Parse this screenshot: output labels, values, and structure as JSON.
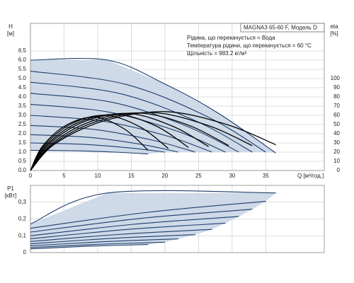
{
  "chart_data": [
    {
      "type": "line",
      "title": "MAGNA3 65-60 F, Модель D",
      "annotations": [
        "Рідина, що перекачується = Вода",
        "Температура рідини, що перекачується = 60 °C",
        "Щільність = 983.2 кг/м³"
      ],
      "x_label": "Q [м³/год.]",
      "y_label": "H",
      "y_unit": "[м]",
      "y2_label": "eta",
      "y2_unit": "[%]",
      "xlim": [
        0,
        43.7
      ],
      "xticks": [
        0,
        5,
        10,
        15,
        20,
        25,
        30,
        35
      ],
      "xtick_labels": true,
      "ylim": [
        0,
        8
      ],
      "yticks": [
        {
          "value": 0,
          "label": "0.0"
        },
        0.5,
        {
          "value": 1,
          "label": "1.0"
        },
        1.5,
        {
          "value": 2,
          "label": "2.0"
        },
        2.5,
        {
          "value": 3,
          "label": "3.0"
        },
        3.5,
        {
          "value": 4,
          "label": "4.0"
        },
        4.5,
        {
          "value": 5,
          "label": "5.0"
        },
        5.5,
        {
          "value": 6,
          "label": "6.0"
        },
        6.5
      ],
      "y2lim": [
        0,
        160
      ],
      "y2ticks": [
        0,
        10,
        20,
        30,
        40,
        50,
        60,
        70,
        80,
        90,
        100
      ],
      "grid": true,
      "fill": "#c9d6e6",
      "series": [
        {
          "color": "#1d3d6b",
          "x": [
            0,
            11.5,
            20,
            28,
            36.5
          ],
          "values": [
            6.0,
            6.0,
            4.7,
            3.1,
            0.95
          ]
        },
        {
          "color": "#1d3d6b",
          "x": [
            0,
            14,
            26.3,
            35
          ],
          "values": [
            5.4,
            4.7,
            2.93,
            1.0
          ]
        },
        {
          "color": "#1d3d6b",
          "x": [
            0,
            13.2,
            24.8,
            33
          ],
          "values": [
            4.8,
            4.19,
            2.66,
            1.0
          ]
        },
        {
          "color": "#1d3d6b",
          "x": [
            0,
            12.4,
            23.3,
            31
          ],
          "values": [
            4.2,
            3.69,
            2.4,
            1.0
          ]
        },
        {
          "color": "#1d3d6b",
          "x": [
            0,
            11.6,
            21.8,
            29
          ],
          "values": [
            3.6,
            3.18,
            2.14,
            1.0
          ]
        },
        {
          "color": "#1d3d6b",
          "x": [
            0,
            10.8,
            20.3,
            27
          ],
          "values": [
            3.0,
            2.68,
            1.88,
            1.0
          ]
        },
        {
          "color": "#1d3d6b",
          "x": [
            0,
            9.8,
            18.4,
            24.5
          ],
          "values": [
            2.45,
            2.22,
            1.63,
            1.0
          ]
        },
        {
          "color": "#1d3d6b",
          "x": [
            0,
            8.8,
            16.5,
            22
          ],
          "values": [
            1.95,
            1.8,
            1.42,
            1.0
          ]
        },
        {
          "color": "#1d3d6b",
          "x": [
            0,
            8,
            15,
            20
          ],
          "values": [
            1.5,
            1.42,
            1.22,
            1.0
          ]
        },
        {
          "color": "#1d3d6b",
          "x": [
            0,
            7,
            13.1,
            17.5
          ],
          "values": [
            1.1,
            1.07,
            0.99,
            0.9
          ]
        },
        {
          "color": "#000000",
          "axis": "y2",
          "x": [
            0,
            1.75,
            5.25,
            9.63,
            14,
            17.5
          ],
          "values": [
            0,
            26,
            49,
            58,
            45,
            22
          ]
        },
        {
          "color": "#000000",
          "axis": "y2",
          "x": [
            0,
            2.05,
            6.15,
            11.28,
            16.4,
            20.5
          ],
          "values": [
            0,
            27,
            51,
            60,
            47,
            24
          ]
        },
        {
          "color": "#000000",
          "axis": "y2",
          "x": [
            0,
            2.35,
            7.05,
            12.93,
            18.8,
            23.5
          ],
          "values": [
            0,
            27.5,
            52,
            61,
            48,
            25
          ]
        },
        {
          "color": "#000000",
          "axis": "y2",
          "x": [
            0,
            2.65,
            7.95,
            14.58,
            21.2,
            26.5
          ],
          "values": [
            0,
            28,
            53,
            62,
            48,
            26
          ]
        },
        {
          "color": "#000000",
          "axis": "y2",
          "x": [
            0,
            2.95,
            8.85,
            16.23,
            23.6,
            29.5
          ],
          "values": [
            0,
            28,
            53,
            62.5,
            49,
            27
          ]
        },
        {
          "color": "#000000",
          "axis": "y2",
          "x": [
            0,
            3.3,
            9.9,
            18.15,
            26.4,
            33
          ],
          "values": [
            0,
            28.5,
            53.5,
            63,
            49,
            27
          ]
        },
        {
          "color": "#000000",
          "axis": "y2",
          "x": [
            0,
            3.65,
            10.95,
            20.08,
            29.2,
            36.5
          ],
          "values": [
            0,
            29,
            54,
            64,
            50,
            28
          ]
        }
      ]
    },
    {
      "type": "line",
      "y_label": "P1",
      "y_unit": "[кВт]",
      "xlim": [
        0,
        43.7
      ],
      "xticks": [
        0,
        5,
        10,
        15,
        20,
        25,
        30,
        35
      ],
      "xtick_labels": false,
      "ylim": [
        0,
        0.4
      ],
      "yticks": [
        0,
        {
          "value": 0.1,
          "label": "0,1"
        },
        {
          "value": 0.2,
          "label": "0,2"
        },
        {
          "value": 0.3,
          "label": "0,3"
        }
      ],
      "grid": true,
      "fill": "#c9d6e6",
      "series": [
        {
          "color": "#1d3d6b",
          "x": [
            0,
            11.5,
            36.5
          ],
          "values": [
            0.17,
            0.355,
            0.355
          ]
        },
        {
          "color": "#1d3d6b",
          "x": [
            0,
            17.5,
            35
          ],
          "values": [
            0.145,
            0.24,
            0.305
          ]
        },
        {
          "color": "#1d3d6b",
          "x": [
            0,
            16.5,
            33
          ],
          "values": [
            0.122,
            0.204,
            0.258
          ]
        },
        {
          "color": "#1d3d6b",
          "x": [
            0,
            15.5,
            31
          ],
          "values": [
            0.1,
            0.169,
            0.215
          ]
        },
        {
          "color": "#1d3d6b",
          "x": [
            0,
            14.5,
            29
          ],
          "values": [
            0.082,
            0.138,
            0.175
          ]
        },
        {
          "color": "#1d3d6b",
          "x": [
            0,
            13.5,
            27
          ],
          "values": [
            0.066,
            0.109,
            0.138
          ]
        },
        {
          "color": "#1d3d6b",
          "x": [
            0,
            12.25,
            24.5
          ],
          "values": [
            0.052,
            0.085,
            0.107
          ]
        },
        {
          "color": "#1d3d6b",
          "x": [
            0,
            11,
            22
          ],
          "values": [
            0.04,
            0.065,
            0.082
          ]
        },
        {
          "color": "#1d3d6b",
          "x": [
            0,
            10,
            20
          ],
          "values": [
            0.03,
            0.049,
            0.062
          ]
        },
        {
          "color": "#1d3d6b",
          "x": [
            0,
            8.75,
            17.5
          ],
          "values": [
            0.022,
            0.038,
            0.048
          ]
        }
      ]
    }
  ]
}
